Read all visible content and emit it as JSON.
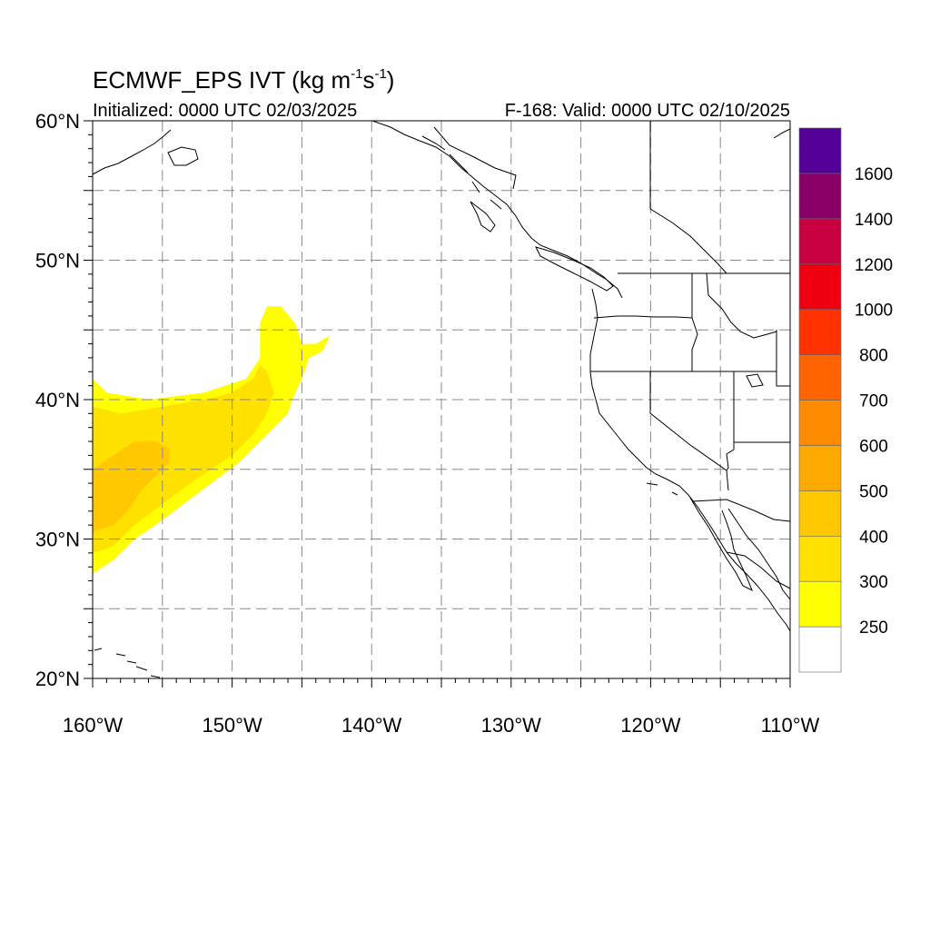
{
  "title": {
    "main": "ECMWF_EPS IVT (kg m",
    "sup1": "-1",
    "mid": "s",
    "sup2": "-1",
    "end": ")"
  },
  "subtitle_left": "Initialized: 0000 UTC 02/03/2025",
  "subtitle_right": "F-168: Valid: 0000 UTC 02/10/2025",
  "map": {
    "lon_range": [
      -160,
      -110
    ],
    "lat_range": [
      20,
      60
    ],
    "x_ticks": [
      {
        "value": -160,
        "label": "160°W"
      },
      {
        "value": -150,
        "label": "150°W"
      },
      {
        "value": -140,
        "label": "140°W"
      },
      {
        "value": -130,
        "label": "130°W"
      },
      {
        "value": -120,
        "label": "120°W"
      },
      {
        "value": -110,
        "label": "110°W"
      }
    ],
    "y_ticks": [
      {
        "value": 60,
        "label": "60°N"
      },
      {
        "value": 50,
        "label": "50°N"
      },
      {
        "value": 40,
        "label": "40°N"
      },
      {
        "value": 30,
        "label": "30°N"
      },
      {
        "value": 20,
        "label": "20°N"
      }
    ],
    "grid_lon": [
      -155,
      -150,
      -145,
      -140,
      -135,
      -130,
      -125,
      -120,
      -115
    ],
    "grid_lat": [
      25,
      30,
      35,
      40,
      45,
      50,
      55
    ],
    "grid_style": "dashed"
  },
  "colorbar": {
    "levels": [
      250,
      300,
      400,
      500,
      600,
      700,
      800,
      1000,
      1200,
      1400,
      1600
    ],
    "labels": [
      "250",
      "300",
      "400",
      "500",
      "600",
      "700",
      "800",
      "1000",
      "1200",
      "1400",
      "1600"
    ],
    "colors": [
      "#ffffff",
      "#ffff00",
      "#ffe100",
      "#ffc800",
      "#ffaa00",
      "#ff8c00",
      "#ff6400",
      "#ff3200",
      "#ee0010",
      "#c80040",
      "#880066",
      "#550099"
    ]
  },
  "chart_data": {
    "type": "heatmap",
    "variable": "IVT",
    "units": "kg m-1 s-1",
    "fields": [
      {
        "level": 250,
        "polygon_lonlat": [
          [
            -160,
            41.5
          ],
          [
            -159,
            40.5
          ],
          [
            -156,
            40
          ],
          [
            -152,
            40.5
          ],
          [
            -149,
            41.5
          ],
          [
            -148,
            43
          ],
          [
            -148,
            45.5
          ],
          [
            -147.5,
            46.7
          ],
          [
            -146.5,
            46.7
          ],
          [
            -145.5,
            45.5
          ],
          [
            -145,
            44
          ],
          [
            -144,
            44
          ],
          [
            -143,
            44.6
          ],
          [
            -143.5,
            43.5
          ],
          [
            -144.5,
            43
          ],
          [
            -145,
            41.5
          ],
          [
            -145.7,
            40
          ],
          [
            -146,
            39
          ],
          [
            -147,
            38
          ],
          [
            -148,
            37
          ],
          [
            -149.5,
            35.5
          ],
          [
            -151.5,
            34
          ],
          [
            -153.5,
            32.5
          ],
          [
            -155.5,
            31
          ],
          [
            -157,
            30
          ],
          [
            -158.5,
            28.5
          ],
          [
            -160,
            27.5
          ]
        ]
      },
      {
        "level": 300,
        "polygon_lonlat": [
          [
            -160,
            39.5
          ],
          [
            -158,
            39
          ],
          [
            -155,
            39.5
          ],
          [
            -152,
            40
          ],
          [
            -150,
            40.5
          ],
          [
            -148.5,
            41.5
          ],
          [
            -148,
            42.5
          ],
          [
            -147.5,
            42
          ],
          [
            -147,
            40.5
          ],
          [
            -147.5,
            39
          ],
          [
            -148.5,
            37.5
          ],
          [
            -150,
            36
          ],
          [
            -151.5,
            35
          ],
          [
            -153,
            34
          ],
          [
            -155,
            32.5
          ],
          [
            -157,
            31
          ],
          [
            -158.5,
            29.5
          ],
          [
            -160,
            29
          ]
        ]
      },
      {
        "level": 400,
        "polygon_lonlat": [
          [
            -160,
            35
          ],
          [
            -158.5,
            36
          ],
          [
            -157,
            37
          ],
          [
            -155.5,
            37
          ],
          [
            -154.5,
            36.5
          ],
          [
            -154.5,
            35.5
          ],
          [
            -155.5,
            34.5
          ],
          [
            -156.5,
            33.5
          ],
          [
            -157.5,
            32
          ],
          [
            -158.5,
            31
          ],
          [
            -160,
            30.5
          ]
        ]
      }
    ]
  }
}
